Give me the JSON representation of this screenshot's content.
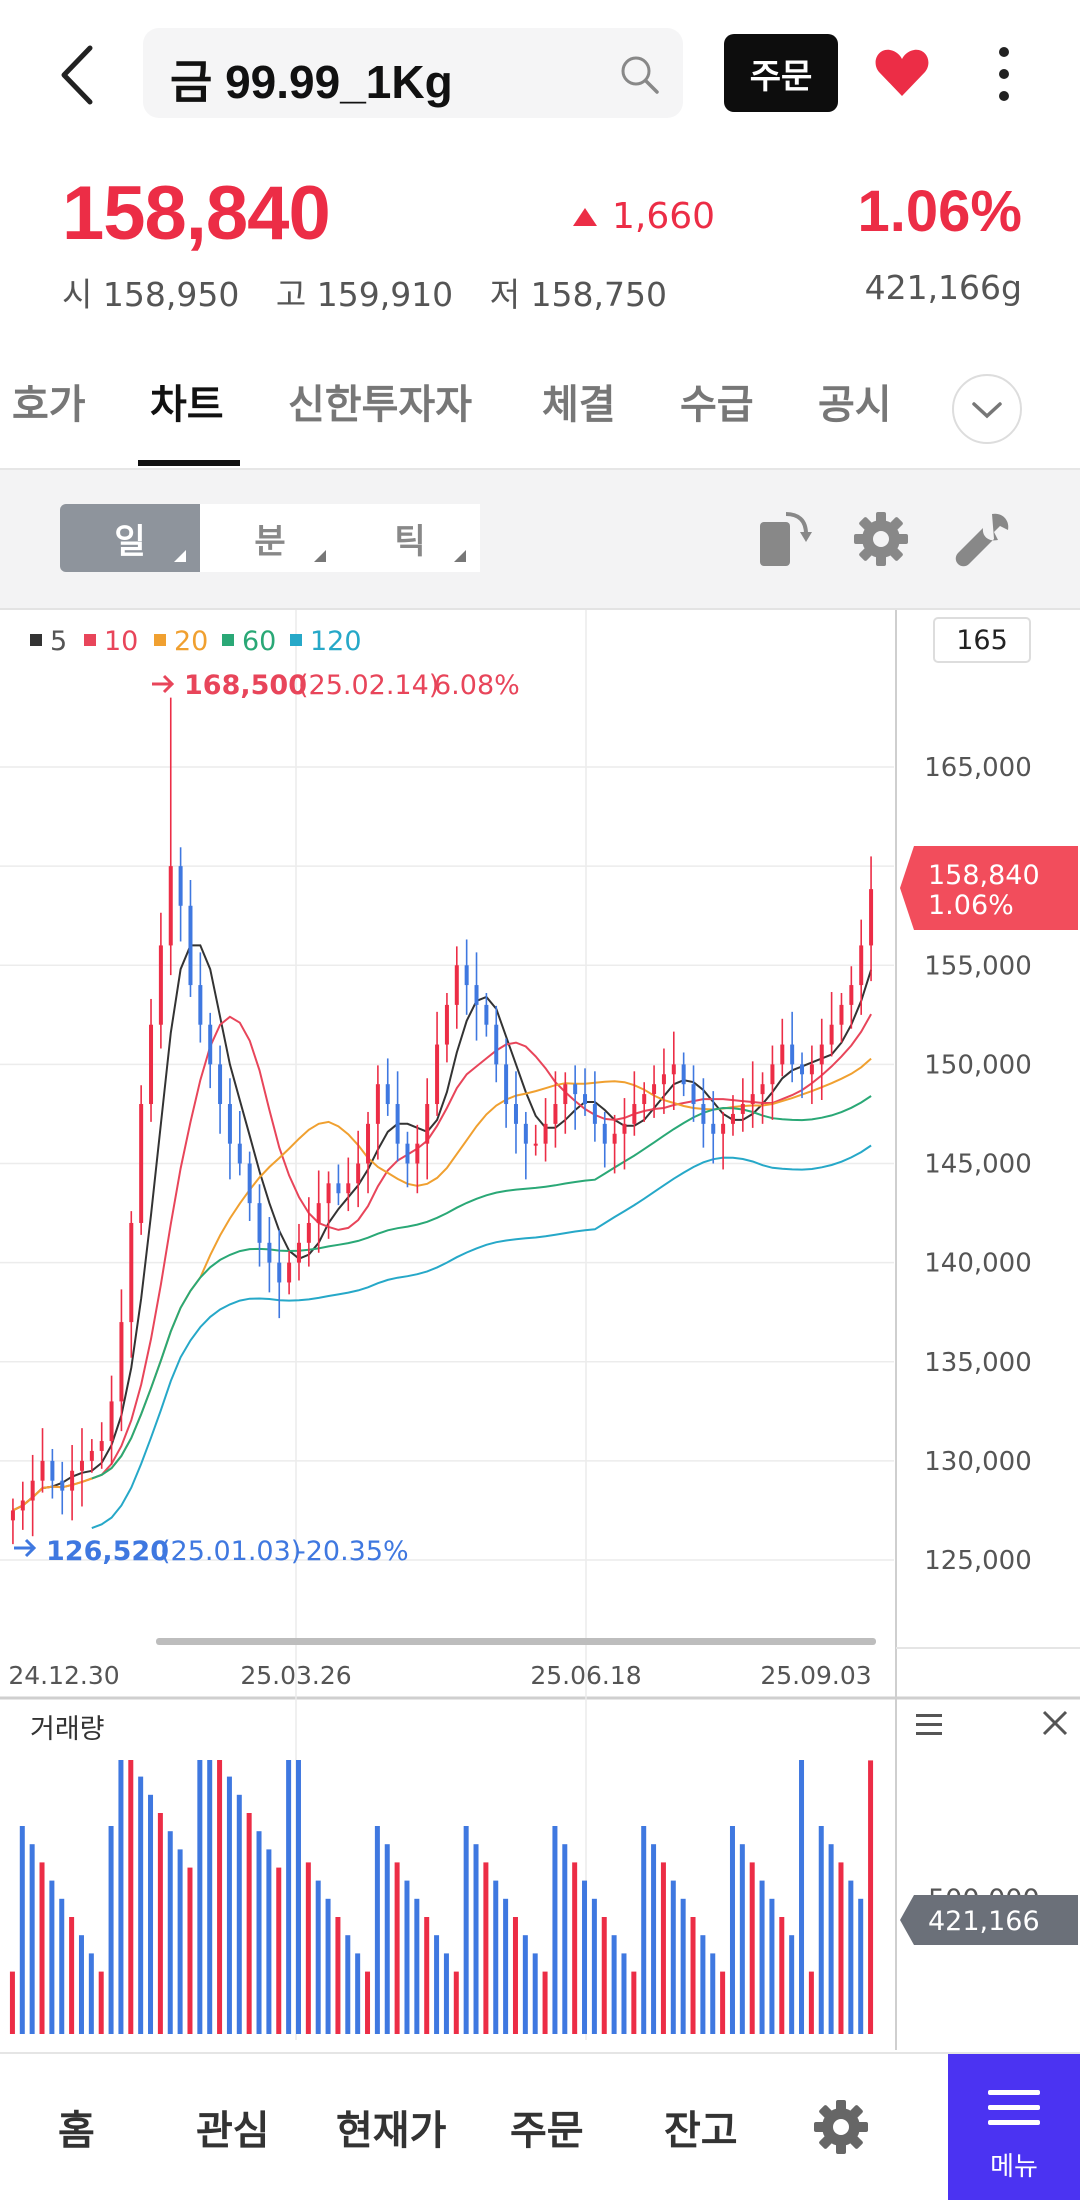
{
  "header": {
    "title": "금 99.99_1Kg",
    "order_label": "주문"
  },
  "quote": {
    "price": "158,840",
    "change": "1,660",
    "change_pct": "1.06%",
    "open_label": "시",
    "open": "158,950",
    "high_label": "고",
    "high": "159,910",
    "low_label": "저",
    "low": "158,750",
    "volume": "421,166g"
  },
  "tabs": [
    {
      "label": "호가"
    },
    {
      "label": "차트"
    },
    {
      "label": "신한투자자"
    },
    {
      "label": "체결"
    },
    {
      "label": "수급"
    },
    {
      "label": "공시"
    }
  ],
  "toolbar": {
    "periods": [
      {
        "label": "일"
      },
      {
        "label": "분"
      },
      {
        "label": "틱"
      }
    ]
  },
  "chart": {
    "count_badge": "165",
    "legend": [
      {
        "label": "5",
        "color": "#333333"
      },
      {
        "label": "10",
        "color": "#e8455a"
      },
      {
        "label": "20",
        "color": "#f0a030"
      },
      {
        "label": "60",
        "color": "#2aa876"
      },
      {
        "label": "120",
        "color": "#26a8c8"
      }
    ],
    "high_ann": {
      "price": "168,500",
      "date": "(25.02.14)",
      "pct": "6.08%"
    },
    "low_ann": {
      "price": "126,520",
      "date": "(25.01.03)",
      "pct": "-20.35%"
    },
    "current_tag": {
      "price": "158,840",
      "pct": "1.06%"
    },
    "volume_label": "거래량",
    "volume_tag": "421,166",
    "volume_axis_tick": "500,000"
  },
  "chart_data": {
    "type": "candlestick",
    "y_ticks": [
      165000,
      160000,
      155000,
      150000,
      145000,
      140000,
      135000,
      130000,
      125000
    ],
    "y_tick_labels": [
      "165,000",
      "160,000",
      "155,000",
      "150,000",
      "145,000",
      "140,000",
      "135,000",
      "130,000",
      "125,000"
    ],
    "ylim": [
      121500,
      169500
    ],
    "x_tick_labels": [
      "24.12.30",
      "25.03.26",
      "25.06.18",
      "25.09.03"
    ],
    "close_series_approx": [
      127500,
      128000,
      129000,
      130000,
      129000,
      128500,
      129500,
      130000,
      130500,
      131000,
      133000,
      137000,
      142000,
      148000,
      152000,
      156000,
      160000,
      158000,
      154000,
      152000,
      150000,
      148000,
      146000,
      145000,
      143000,
      141000,
      140000,
      139000,
      140000,
      141000,
      142000,
      143000,
      144000,
      143500,
      144000,
      145000,
      147000,
      149000,
      148000,
      146000,
      145000,
      146000,
      148000,
      151000,
      153000,
      155000,
      154000,
      153000,
      152000,
      150000,
      148000,
      147000,
      146000,
      146000,
      147000,
      148000,
      149000,
      148500,
      148000,
      147000,
      146000,
      146500,
      147000,
      148000,
      148500,
      149000,
      149500,
      150000,
      149000,
      148000,
      147000,
      146500,
      147000,
      147500,
      148000,
      148500,
      149000,
      150000,
      151000,
      150000,
      149500,
      150000,
      151000,
      152000,
      153000,
      154000,
      156000,
      158840
    ],
    "last_close": 158840,
    "last_change_pct": 1.06,
    "period_high": {
      "value": 168500,
      "date": "25.02.14"
    },
    "period_low": {
      "value": 126520,
      "date": "25.01.03"
    },
    "volume_last": 421166
  },
  "nav": {
    "items": [
      {
        "label": "홈"
      },
      {
        "label": "관심"
      },
      {
        "label": "현재가"
      },
      {
        "label": "주문"
      },
      {
        "label": "잔고"
      }
    ],
    "menu_label": "메뉴"
  },
  "colors": {
    "up": "#ec2d46",
    "down": "#3f78e0",
    "accent": "#4b33f2"
  }
}
